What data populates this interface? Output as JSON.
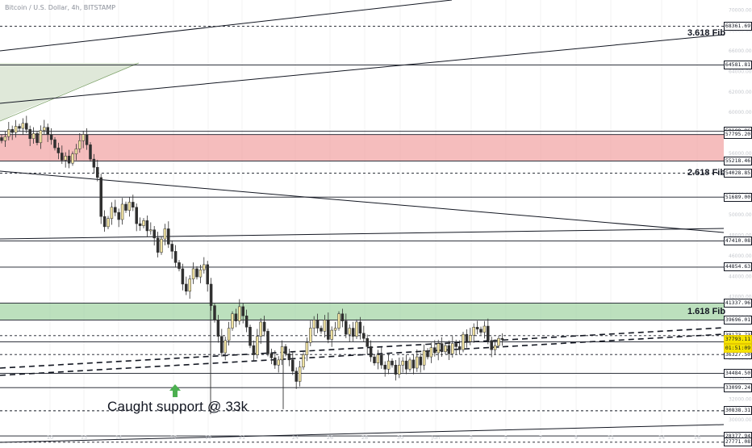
{
  "header": {
    "symbol_title": "Bitcoin / U.S. Dollar, 4h, BITSTAMP"
  },
  "annotations": {
    "fib_3618": "3.618 Fib",
    "fib_2618": "2.618 Fib",
    "fib_1618": "1.618 Fib",
    "support_caption": "Caught support @ 33k"
  },
  "price_axis": {
    "ticks": [
      "70000.00",
      "68000.00",
      "66000.00",
      "64000.00",
      "62000.00",
      "60000.00",
      "58000.00",
      "56000.00",
      "54000.00",
      "52000.00",
      "50000.00",
      "48000.00",
      "46000.00",
      "44000.00",
      "42000.00",
      "40000.00",
      "38000.00",
      "36000.00",
      "34000.00",
      "32000.00",
      "30000.00",
      "28000.00"
    ],
    "current_price": "37793.11",
    "countdown": "01:51:09"
  },
  "time_axis": {
    "ticks": [
      "10",
      "13",
      "14",
      "17",
      "19",
      "21",
      "24",
      "26",
      "28",
      "30",
      "Jun",
      "3",
      "5",
      "7",
      "9",
      "11",
      "14",
      "16"
    ]
  },
  "colors": {
    "bull_candle": "#f1e3a1",
    "bear_candle": "#2f2f2f",
    "supply_zone": "#ef9a9a",
    "demand_zone": "#a5d6a7",
    "triangle_fill": "#dfe8d9",
    "current_price": "#f5e400",
    "arrow": "#4caf50"
  },
  "chart_data": {
    "type": "candlestick",
    "title": "Bitcoin / U.S. Dollar, 4h, BITSTAMP",
    "xlabel": "",
    "ylabel": "",
    "ylim": [
      27000,
      70500
    ],
    "levels": [
      {
        "price": 68361.69,
        "label": "68361.69",
        "style": "dashed"
      },
      {
        "price": 64581.81,
        "label": "64581.81",
        "style": "solid"
      },
      {
        "price": 58109.96,
        "label": "58109.96",
        "style": "solid"
      },
      {
        "price": 57795.2,
        "label": "57795.20",
        "style": "solid"
      },
      {
        "price": 55218.46,
        "label": "55218.46",
        "style": "solid"
      },
      {
        "price": 54028.85,
        "label": "54028.85",
        "style": "dashed"
      },
      {
        "price": 51689.0,
        "label": "51689.00",
        "style": "solid"
      },
      {
        "price": 47410.08,
        "label": "47410.08",
        "style": "solid"
      },
      {
        "price": 44854.63,
        "label": "44854.63",
        "style": "solid"
      },
      {
        "price": 41337.96,
        "label": "41337.96",
        "style": "solid"
      },
      {
        "price": 39696.01,
        "label": "39696.01",
        "style": "solid"
      },
      {
        "price": 38173.73,
        "label": "38173.73",
        "style": "dashed"
      },
      {
        "price": 37560.18,
        "label": "37560.18",
        "style": "solid"
      },
      {
        "price": 36327.5,
        "label": "36327.50",
        "style": "dashed"
      },
      {
        "price": 34484.5,
        "label": "34484.50",
        "style": "solid"
      },
      {
        "price": 33099.24,
        "label": "33099.24",
        "style": "solid"
      },
      {
        "price": 30838.31,
        "label": "30838.31",
        "style": "dashed"
      },
      {
        "price": 28377.94,
        "label": "28377.94",
        "style": "solid"
      },
      {
        "price": 27771.08,
        "label": "27771.08",
        "style": "dashed"
      }
    ],
    "zones": [
      {
        "name": "supply",
        "from": 55218.46,
        "to": 57795.2
      },
      {
        "name": "demand",
        "from": 39696.01,
        "to": 41337.96
      }
    ],
    "candles_close": [
      57200,
      57600,
      58300,
      58000,
      58600,
      58400,
      58900,
      58300,
      57400,
      57900,
      57000,
      58200,
      58500,
      57800,
      57300,
      56500,
      56000,
      55300,
      55700,
      55000,
      55900,
      56400,
      57200,
      57800,
      56800,
      55400,
      54600,
      53600,
      49800,
      48800,
      49600,
      50700,
      50200,
      49500,
      51000,
      50400,
      51200,
      50700,
      49100,
      48900,
      49400,
      48400,
      48500,
      47700,
      46300,
      47600,
      48600,
      47100,
      46400,
      45300,
      44700,
      43200,
      42500,
      43700,
      44700,
      43900,
      44600,
      45100,
      43200,
      41100,
      39700,
      38100,
      36500,
      37700,
      38900,
      40300,
      39600,
      41000,
      40100,
      39000,
      37200,
      36300,
      38100,
      39500,
      38600,
      36400,
      36000,
      35300,
      35800,
      37100,
      36400,
      35800,
      34700,
      33700,
      35100,
      36300,
      37500,
      38900,
      39700,
      38900,
      38600,
      39700,
      37800,
      38700,
      38900,
      40300,
      39600,
      38300,
      38900,
      38100,
      39500,
      38400,
      37900,
      37100,
      36100,
      35500,
      36300,
      35300,
      34900,
      35700,
      35300,
      34400,
      35300,
      35700,
      34900,
      35800,
      35000,
      36100,
      35300,
      36700,
      36100,
      37000,
      36500,
      37400,
      36600,
      37200,
      36400,
      37400,
      37100,
      36800,
      38300,
      37600,
      38200,
      39000,
      38800,
      38500,
      39100,
      37700,
      36800,
      37200,
      37900,
      37793
    ]
  }
}
